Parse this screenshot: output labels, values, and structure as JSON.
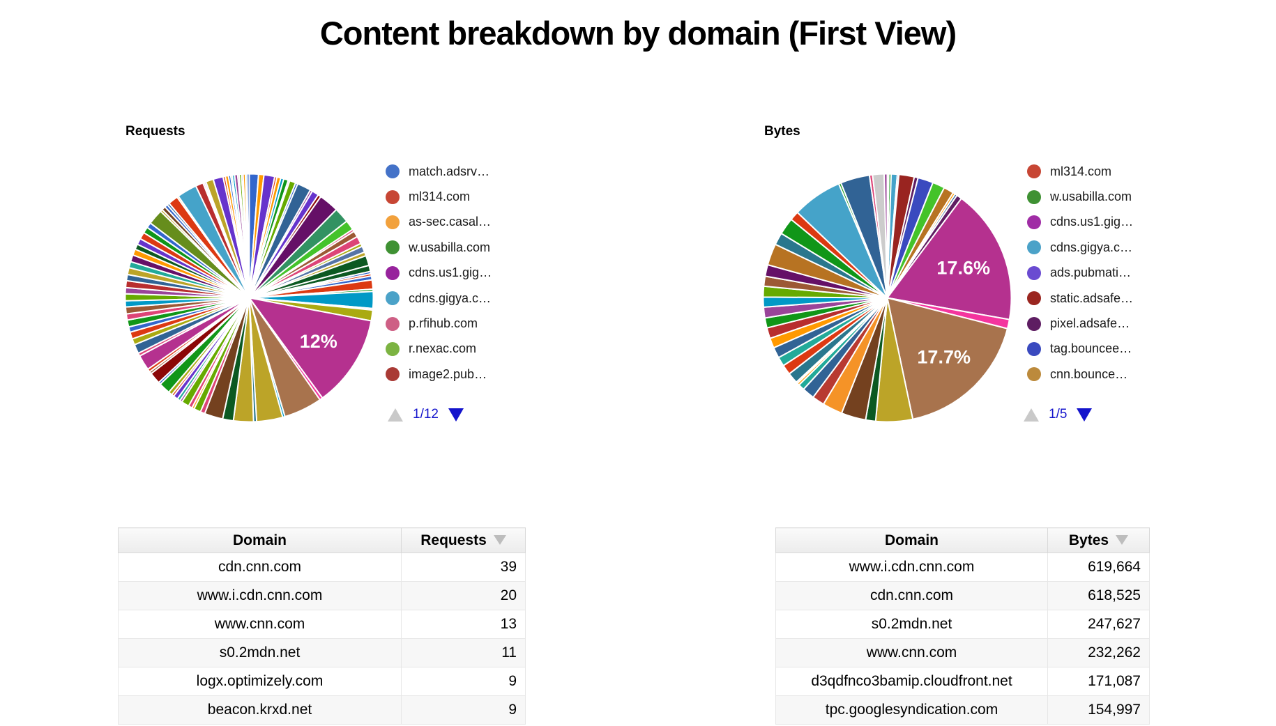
{
  "title": "Content breakdown by domain (First View)",
  "chart_data": [
    {
      "type": "pie",
      "title": "Requests",
      "legend_position": "right",
      "legend": {
        "page": "1/12",
        "items": [
          {
            "label": "match.adsrv…",
            "color": "#4472C8"
          },
          {
            "label": "ml314.com",
            "color": "#C74634"
          },
          {
            "label": "as-sec.casal…",
            "color": "#F2A13C"
          },
          {
            "label": "w.usabilla.com",
            "color": "#3F9133"
          },
          {
            "label": "cdns.us1.gig…",
            "color": "#97239C"
          },
          {
            "label": "cdns.gigya.c…",
            "color": "#4BA2C8"
          },
          {
            "label": "p.rfihub.com",
            "color": "#CE5F85"
          },
          {
            "label": "r.nexac.com",
            "color": "#7CB342"
          },
          {
            "label": "image2.pub…",
            "color": "#A93A35"
          }
        ]
      },
      "labeled_slices": [
        {
          "label": "12%",
          "value_pct": 12
        }
      ],
      "slices": [
        {
          "v": 1.2,
          "c": "#3366CC"
        },
        {
          "v": 0.7,
          "c": "#FF9900"
        },
        {
          "v": 1.4,
          "c": "#6633CC"
        },
        {
          "v": 0.3,
          "c": "#DC3912"
        },
        {
          "v": 0.5,
          "c": "#FF9900"
        },
        {
          "v": 0.4,
          "c": "#0099C6"
        },
        {
          "v": 0.6,
          "c": "#109618"
        },
        {
          "v": 0.2,
          "c": "#DD4477"
        },
        {
          "v": 0.8,
          "c": "#66AA00"
        },
        {
          "v": 0.3,
          "c": "#3366CC"
        },
        {
          "v": 1.8,
          "c": "#316395"
        },
        {
          "v": 0.3,
          "c": "#994499"
        },
        {
          "v": 0.9,
          "c": "#6633CC"
        },
        {
          "v": 0.4,
          "c": "#8B0707"
        },
        {
          "v": 2.6,
          "c": "#651067"
        },
        {
          "v": 2.0,
          "c": "#329262"
        },
        {
          "v": 1.3,
          "c": "#44C32A"
        },
        {
          "v": 0.3,
          "c": "#DD4477"
        },
        {
          "v": 0.8,
          "c": "#9C5935"
        },
        {
          "v": 1.0,
          "c": "#DD4477"
        },
        {
          "v": 0.4,
          "c": "#AAAA11"
        },
        {
          "v": 0.8,
          "c": "#5574A6"
        },
        {
          "v": 0.5,
          "c": "#BCA428"
        },
        {
          "v": 1.3,
          "c": "#0C5922"
        },
        {
          "v": 0.8,
          "c": "#0C5922"
        },
        {
          "v": 0.3,
          "c": "#3366CC"
        },
        {
          "v": 0.3,
          "c": "#DC3912"
        },
        {
          "v": 0.5,
          "c": "#3366CC"
        },
        {
          "v": 1.2,
          "c": "#DC3912"
        },
        {
          "v": 0.3,
          "c": "#109618"
        },
        {
          "v": 2.2,
          "c": "#0099C6"
        },
        {
          "v": 0.2,
          "c": "#DD4477"
        },
        {
          "v": 1.4,
          "c": "#AAAA11"
        },
        {
          "v": 12.0,
          "c": "#B5318F",
          "t": "12%"
        },
        {
          "v": 0.4,
          "c": "#F4359E"
        },
        {
          "v": 5.0,
          "c": "#A8734D"
        },
        {
          "v": 0.3,
          "c": "#0099C6"
        },
        {
          "v": 3.4,
          "c": "#BCA428"
        },
        {
          "v": 0.4,
          "c": "#2A778D"
        },
        {
          "v": 2.6,
          "c": "#BCA428"
        },
        {
          "v": 1.4,
          "c": "#0C5922"
        },
        {
          "v": 2.4,
          "c": "#74411F"
        },
        {
          "v": 0.6,
          "c": "#DD4477"
        },
        {
          "v": 0.9,
          "c": "#66AA00"
        },
        {
          "v": 0.3,
          "c": "#FF9900"
        },
        {
          "v": 0.5,
          "c": "#DD4477"
        },
        {
          "v": 1.0,
          "c": "#66AA00"
        },
        {
          "v": 0.3,
          "c": "#994499"
        },
        {
          "v": 0.4,
          "c": "#22AA99"
        },
        {
          "v": 0.6,
          "c": "#6633CC"
        },
        {
          "v": 0.3,
          "c": "#DC3912"
        },
        {
          "v": 0.5,
          "c": "#AAAA11"
        },
        {
          "v": 1.5,
          "c": "#109618"
        },
        {
          "v": 0.3,
          "c": "#3366CC"
        },
        {
          "v": 1.5,
          "c": "#8B0707"
        },
        {
          "v": 0.3,
          "c": "#9C5935"
        },
        {
          "v": 0.4,
          "c": "#DC3912"
        },
        {
          "v": 2.0,
          "c": "#B5318F"
        },
        {
          "v": 0.4,
          "c": "#DD4477"
        },
        {
          "v": 1.2,
          "c": "#316395"
        },
        {
          "v": 0.8,
          "c": "#AAAA11"
        },
        {
          "v": 0.9,
          "c": "#DC3912"
        },
        {
          "v": 0.7,
          "c": "#3366CC"
        },
        {
          "v": 0.9,
          "c": "#109618"
        },
        {
          "v": 0.8,
          "c": "#DD4477"
        },
        {
          "v": 0.9,
          "c": "#9C5935"
        },
        {
          "v": 0.8,
          "c": "#0099C6"
        },
        {
          "v": 0.9,
          "c": "#66AA00"
        },
        {
          "v": 0.8,
          "c": "#994499"
        },
        {
          "v": 0.9,
          "c": "#B82E2E"
        },
        {
          "v": 0.8,
          "c": "#316395"
        },
        {
          "v": 0.9,
          "c": "#BCA428"
        },
        {
          "v": 0.8,
          "c": "#22AA99"
        },
        {
          "v": 0.9,
          "c": "#651067"
        },
        {
          "v": 0.8,
          "c": "#FF9900"
        },
        {
          "v": 0.7,
          "c": "#0C5922"
        },
        {
          "v": 0.8,
          "c": "#6633CC"
        },
        {
          "v": 0.9,
          "c": "#DC3912"
        },
        {
          "v": 0.8,
          "c": "#109618"
        },
        {
          "v": 0.7,
          "c": "#3366CC"
        },
        {
          "v": 2.0,
          "c": "#668D1C"
        },
        {
          "v": 0.3,
          "c": "#BCA428"
        },
        {
          "v": 0.5,
          "c": "#74411F"
        },
        {
          "v": 0.4,
          "c": "#3366CC"
        },
        {
          "v": 0.3,
          "c": "#316395"
        },
        {
          "v": 1.3,
          "c": "#DC3912"
        },
        {
          "v": 0.2,
          "c": "#FF9900"
        },
        {
          "v": 2.6,
          "c": "#45A3C9"
        },
        {
          "v": 1.0,
          "c": "#B82E2E"
        },
        {
          "v": 0.2,
          "c": "#DD4477"
        },
        {
          "v": 0.2,
          "c": "#6633CC"
        },
        {
          "v": 1.0,
          "c": "#BCA428"
        },
        {
          "v": 1.3,
          "c": "#6633CC"
        },
        {
          "v": 0.3,
          "c": "#DC3912"
        },
        {
          "v": 0.4,
          "c": "#FF9900"
        },
        {
          "v": 0.3,
          "c": "#3366CC"
        },
        {
          "v": 0.2,
          "c": "#109618"
        },
        {
          "v": 0.3,
          "c": "#0099C6"
        },
        {
          "v": 0.4,
          "c": "#994499"
        },
        {
          "v": 0.2,
          "c": "#DC3912"
        },
        {
          "v": 0.3,
          "c": "#66AA00"
        },
        {
          "v": 0.2,
          "c": "#316395"
        },
        {
          "v": 0.3,
          "c": "#FF9900"
        },
        {
          "v": 0.2,
          "c": "#22AA99"
        },
        {
          "v": 0.3,
          "c": "#3366CC"
        }
      ]
    },
    {
      "type": "pie",
      "title": "Bytes",
      "legend_position": "right",
      "legend": {
        "page": "1/5",
        "items": [
          {
            "label": "ml314.com",
            "color": "#C74634"
          },
          {
            "label": "w.usabilla.com",
            "color": "#3F9133"
          },
          {
            "label": "cdns.us1.gig…",
            "color": "#A02CA5"
          },
          {
            "label": "cdns.gigya.c…",
            "color": "#4BA2C8"
          },
          {
            "label": "ads.pubmati…",
            "color": "#6A4BD1"
          },
          {
            "label": "static.adsafe…",
            "color": "#9A2620"
          },
          {
            "label": "pixel.adsafe…",
            "color": "#5E1D62"
          },
          {
            "label": "tag.bouncee…",
            "color": "#3A4ABF"
          },
          {
            "label": "cnn.bounce…",
            "color": "#BC8A3C"
          }
        ]
      },
      "labeled_slices": [
        {
          "label": "17.6%",
          "value_pct": 17.6
        },
        {
          "label": "17.7%",
          "value_pct": 17.7
        }
      ],
      "slices": [
        {
          "v": 0.2,
          "c": "#DC3912"
        },
        {
          "v": 0.3,
          "c": "#109618"
        },
        {
          "v": 0.8,
          "c": "#45A3C9"
        },
        {
          "v": 0.2,
          "c": "#3366CC"
        },
        {
          "v": 2.0,
          "c": "#992420"
        },
        {
          "v": 0.5,
          "c": "#5E1D62"
        },
        {
          "v": 2.0,
          "c": "#3A4ABF"
        },
        {
          "v": 1.6,
          "c": "#44C32A"
        },
        {
          "v": 1.3,
          "c": "#B77322"
        },
        {
          "v": 0.3,
          "c": "#FF9900"
        },
        {
          "v": 0.3,
          "c": "#316395"
        },
        {
          "v": 0.7,
          "c": "#5E1D62"
        },
        {
          "v": 17.6,
          "c": "#B5318F",
          "t": "17.6%"
        },
        {
          "v": 1.2,
          "c": "#F4359E"
        },
        {
          "v": 17.7,
          "c": "#A8734D",
          "t": "17.7%"
        },
        {
          "v": 4.8,
          "c": "#BCA428"
        },
        {
          "v": 1.3,
          "c": "#0C5922"
        },
        {
          "v": 3.2,
          "c": "#74411F"
        },
        {
          "v": 2.6,
          "c": "#F59327"
        },
        {
          "v": 1.6,
          "c": "#B83A31"
        },
        {
          "v": 1.6,
          "c": "#316395"
        },
        {
          "v": 0.8,
          "c": "#22AA99"
        },
        {
          "v": 0.3,
          "c": "#FF9900"
        },
        {
          "v": 0.2,
          "c": "#DC3912"
        },
        {
          "v": 1.4,
          "c": "#2A778D"
        },
        {
          "v": 1.3,
          "c": "#DC3912"
        },
        {
          "v": 1.2,
          "c": "#22AA99"
        },
        {
          "v": 1.4,
          "c": "#316395"
        },
        {
          "v": 1.3,
          "c": "#FF9900"
        },
        {
          "v": 1.4,
          "c": "#B82E2E"
        },
        {
          "v": 1.3,
          "c": "#109618"
        },
        {
          "v": 1.4,
          "c": "#994499"
        },
        {
          "v": 1.3,
          "c": "#0099C6"
        },
        {
          "v": 1.4,
          "c": "#66AA00"
        },
        {
          "v": 1.3,
          "c": "#9C5935"
        },
        {
          "v": 1.5,
          "c": "#651067"
        },
        {
          "v": 2.8,
          "c": "#B77322"
        },
        {
          "v": 1.6,
          "c": "#2A778D"
        },
        {
          "v": 2.2,
          "c": "#109618"
        },
        {
          "v": 1.2,
          "c": "#DC3912"
        },
        {
          "v": 6.5,
          "c": "#45A3C9"
        },
        {
          "v": 0.3,
          "c": "#109618"
        },
        {
          "v": 3.8,
          "c": "#316395"
        },
        {
          "v": 0.4,
          "c": "#DD4477"
        },
        {
          "v": 1.5,
          "c": "#CCCCCC"
        },
        {
          "v": 0.4,
          "c": "#994499"
        }
      ]
    }
  ],
  "pager": {
    "up_arrow": "scroll-legend-up",
    "down_arrow": "scroll-legend-down"
  },
  "tables": [
    {
      "headers": [
        "Domain",
        "Requests"
      ],
      "sorted_by": "Requests",
      "rows": [
        [
          "cdn.cnn.com",
          "39"
        ],
        [
          "www.i.cdn.cnn.com",
          "20"
        ],
        [
          "www.cnn.com",
          "13"
        ],
        [
          "s0.2mdn.net",
          "11"
        ],
        [
          "logx.optimizely.com",
          "9"
        ],
        [
          "beacon.krxd.net",
          "9"
        ]
      ]
    },
    {
      "headers": [
        "Domain",
        "Bytes"
      ],
      "sorted_by": "Bytes",
      "rows": [
        [
          "www.i.cdn.cnn.com",
          "619,664"
        ],
        [
          "cdn.cnn.com",
          "618,525"
        ],
        [
          "s0.2mdn.net",
          "247,627"
        ],
        [
          "www.cnn.com",
          "232,262"
        ],
        [
          "d3qdfnco3bamip.cloudfront.net",
          "171,087"
        ],
        [
          "tpc.googlesyndication.com",
          "154,997"
        ]
      ]
    }
  ]
}
